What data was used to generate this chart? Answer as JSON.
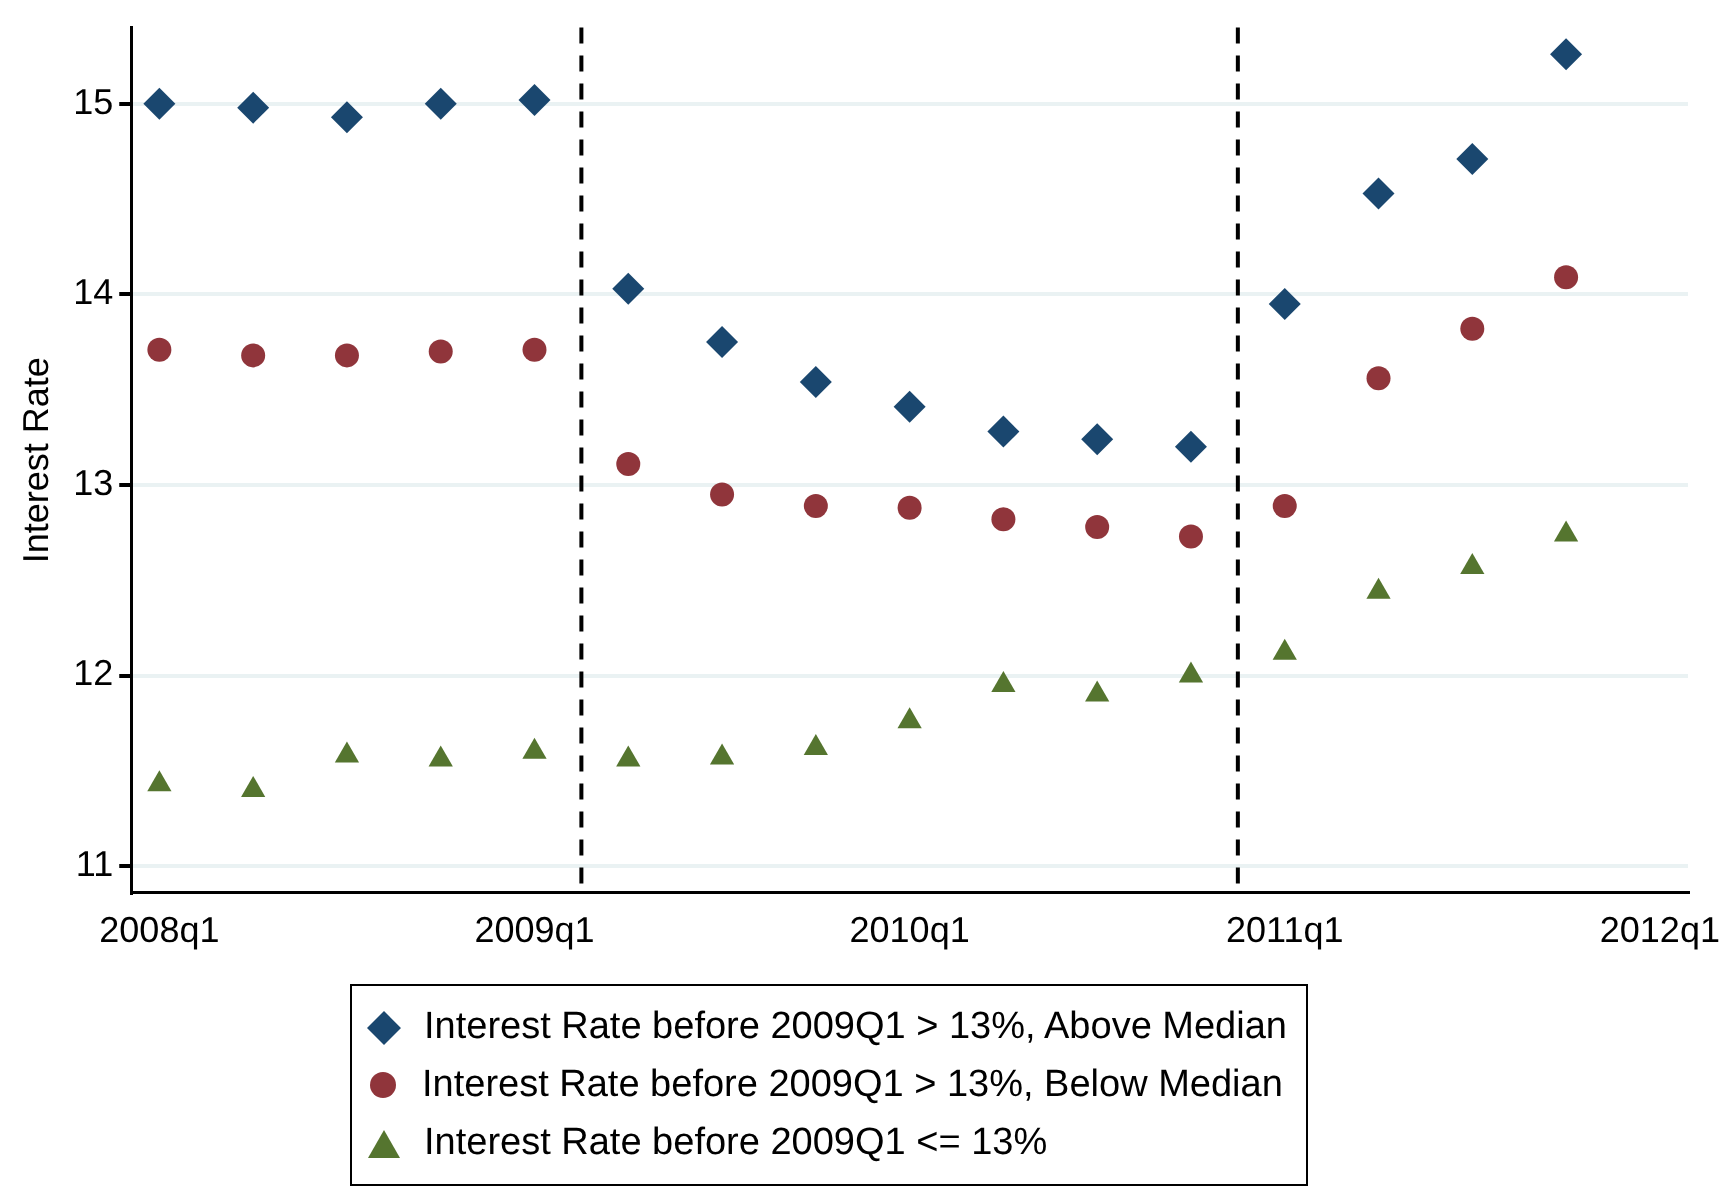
{
  "chart_data": {
    "type": "scatter",
    "ylabel": "Interest Rate",
    "categories": [
      "2008q1",
      null,
      null,
      null,
      "2009q1",
      null,
      null,
      null,
      "2010q1",
      null,
      null,
      null,
      "2011q1",
      null,
      null,
      null,
      "2012q1"
    ],
    "series": [
      {
        "name": "Interest Rate before 2009Q1 > 13%, Above Median",
        "color": "#1a476f",
        "marker": "diamond",
        "values": [
          15.0,
          14.98,
          14.93,
          15.0,
          15.02,
          14.03,
          13.75,
          13.54,
          13.41,
          13.28,
          13.24,
          13.2,
          13.95,
          14.53,
          14.71,
          15.26,
          null
        ]
      },
      {
        "name": "Interest Rate before 2009Q1 > 13%, Below Median",
        "color": "#90353b",
        "marker": "circle",
        "values": [
          13.71,
          13.68,
          13.68,
          13.7,
          13.71,
          13.11,
          12.95,
          12.89,
          12.88,
          12.82,
          12.78,
          12.73,
          12.89,
          13.56,
          13.82,
          14.09,
          null
        ]
      },
      {
        "name": "Interest Rate before 2009Q1 <= 13%",
        "color": "#55752f",
        "marker": "triangle",
        "values": [
          11.43,
          11.4,
          11.58,
          11.56,
          11.6,
          11.56,
          11.57,
          11.62,
          11.76,
          11.95,
          11.9,
          12.0,
          12.12,
          12.44,
          12.57,
          12.74,
          null
        ]
      }
    ],
    "ylim": [
      10.86,
      15.4
    ],
    "yticks": [
      11,
      12,
      13,
      14,
      15
    ],
    "grid": "y",
    "legend": "bottom"
  }
}
